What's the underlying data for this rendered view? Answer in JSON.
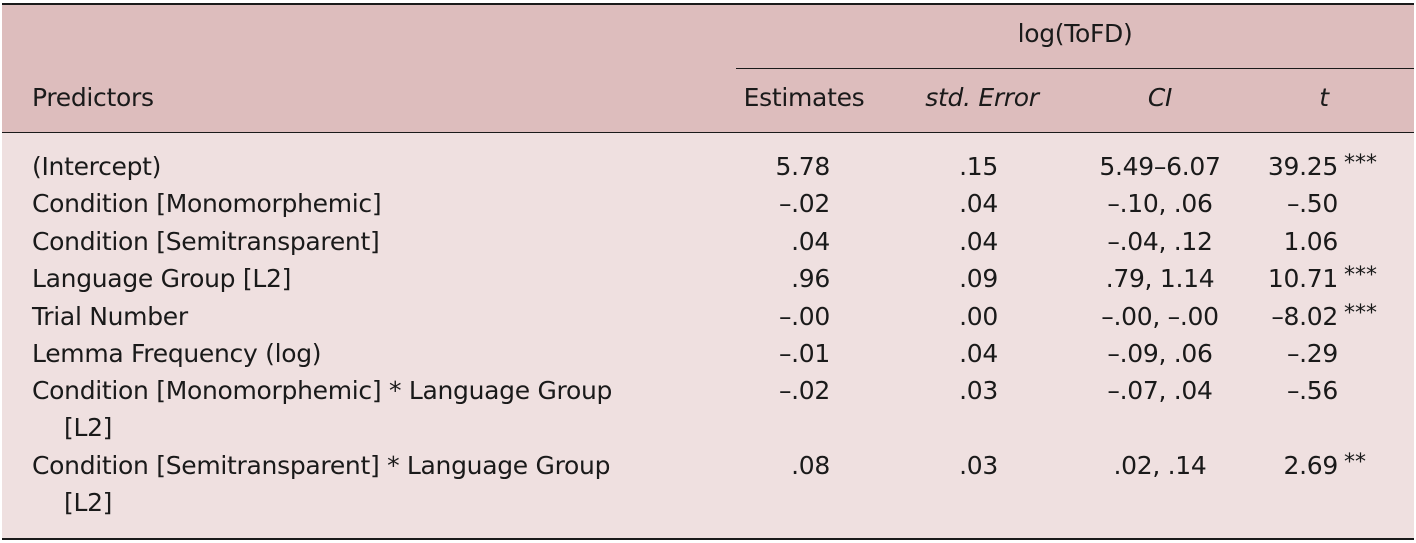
{
  "table": {
    "group_header": "log(ToFD)",
    "predictors_header": "Predictors",
    "columns": [
      "Estimates",
      "std. Error",
      "CI",
      "t"
    ],
    "rows": [
      {
        "predictor": "(Intercept)",
        "predictor_cont": "",
        "estimate": "5.78",
        "se": ".15",
        "ci": "5.49–6.07",
        "t": "39.25",
        "sig": "***"
      },
      {
        "predictor": "Condition [Monomorphemic]",
        "predictor_cont": "",
        "estimate": "–.02",
        "se": ".04",
        "ci": "–.10, .06",
        "t": "–.50",
        "sig": ""
      },
      {
        "predictor": "Condition [Semitransparent]",
        "predictor_cont": "",
        "estimate": ".04",
        "se": ".04",
        "ci": "–.04, .12",
        "t": "1.06",
        "sig": ""
      },
      {
        "predictor": "Language Group [L2]",
        "predictor_cont": "",
        "estimate": ".96",
        "se": ".09",
        "ci": ".79, 1.14",
        "t": "10.71",
        "sig": "***"
      },
      {
        "predictor": "Trial Number",
        "predictor_cont": "",
        "estimate": "–.00",
        "se": ".00",
        "ci": "–.00, –.00",
        "t": "–8.02",
        "sig": "***"
      },
      {
        "predictor": "Lemma Frequency (log)",
        "predictor_cont": "",
        "estimate": "–.01",
        "se": ".04",
        "ci": "–.09, .06",
        "t": "–.29",
        "sig": ""
      },
      {
        "predictor": "Condition [Monomorphemic] * Language Group",
        "predictor_cont": "[L2]",
        "estimate": "–.02",
        "se": ".03",
        "ci": "–.07, .04",
        "t": "–.56",
        "sig": ""
      },
      {
        "predictor": "Condition [Semitransparent] * Language Group",
        "predictor_cont": "[L2]",
        "estimate": ".08",
        "se": ".03",
        "ci": ".02, .14",
        "t": "2.69",
        "sig": "**"
      }
    ]
  },
  "colors": {
    "header_bg": "#ddbdbd",
    "body_bg": "#efe0e0",
    "rule": "#1a1a1a"
  }
}
